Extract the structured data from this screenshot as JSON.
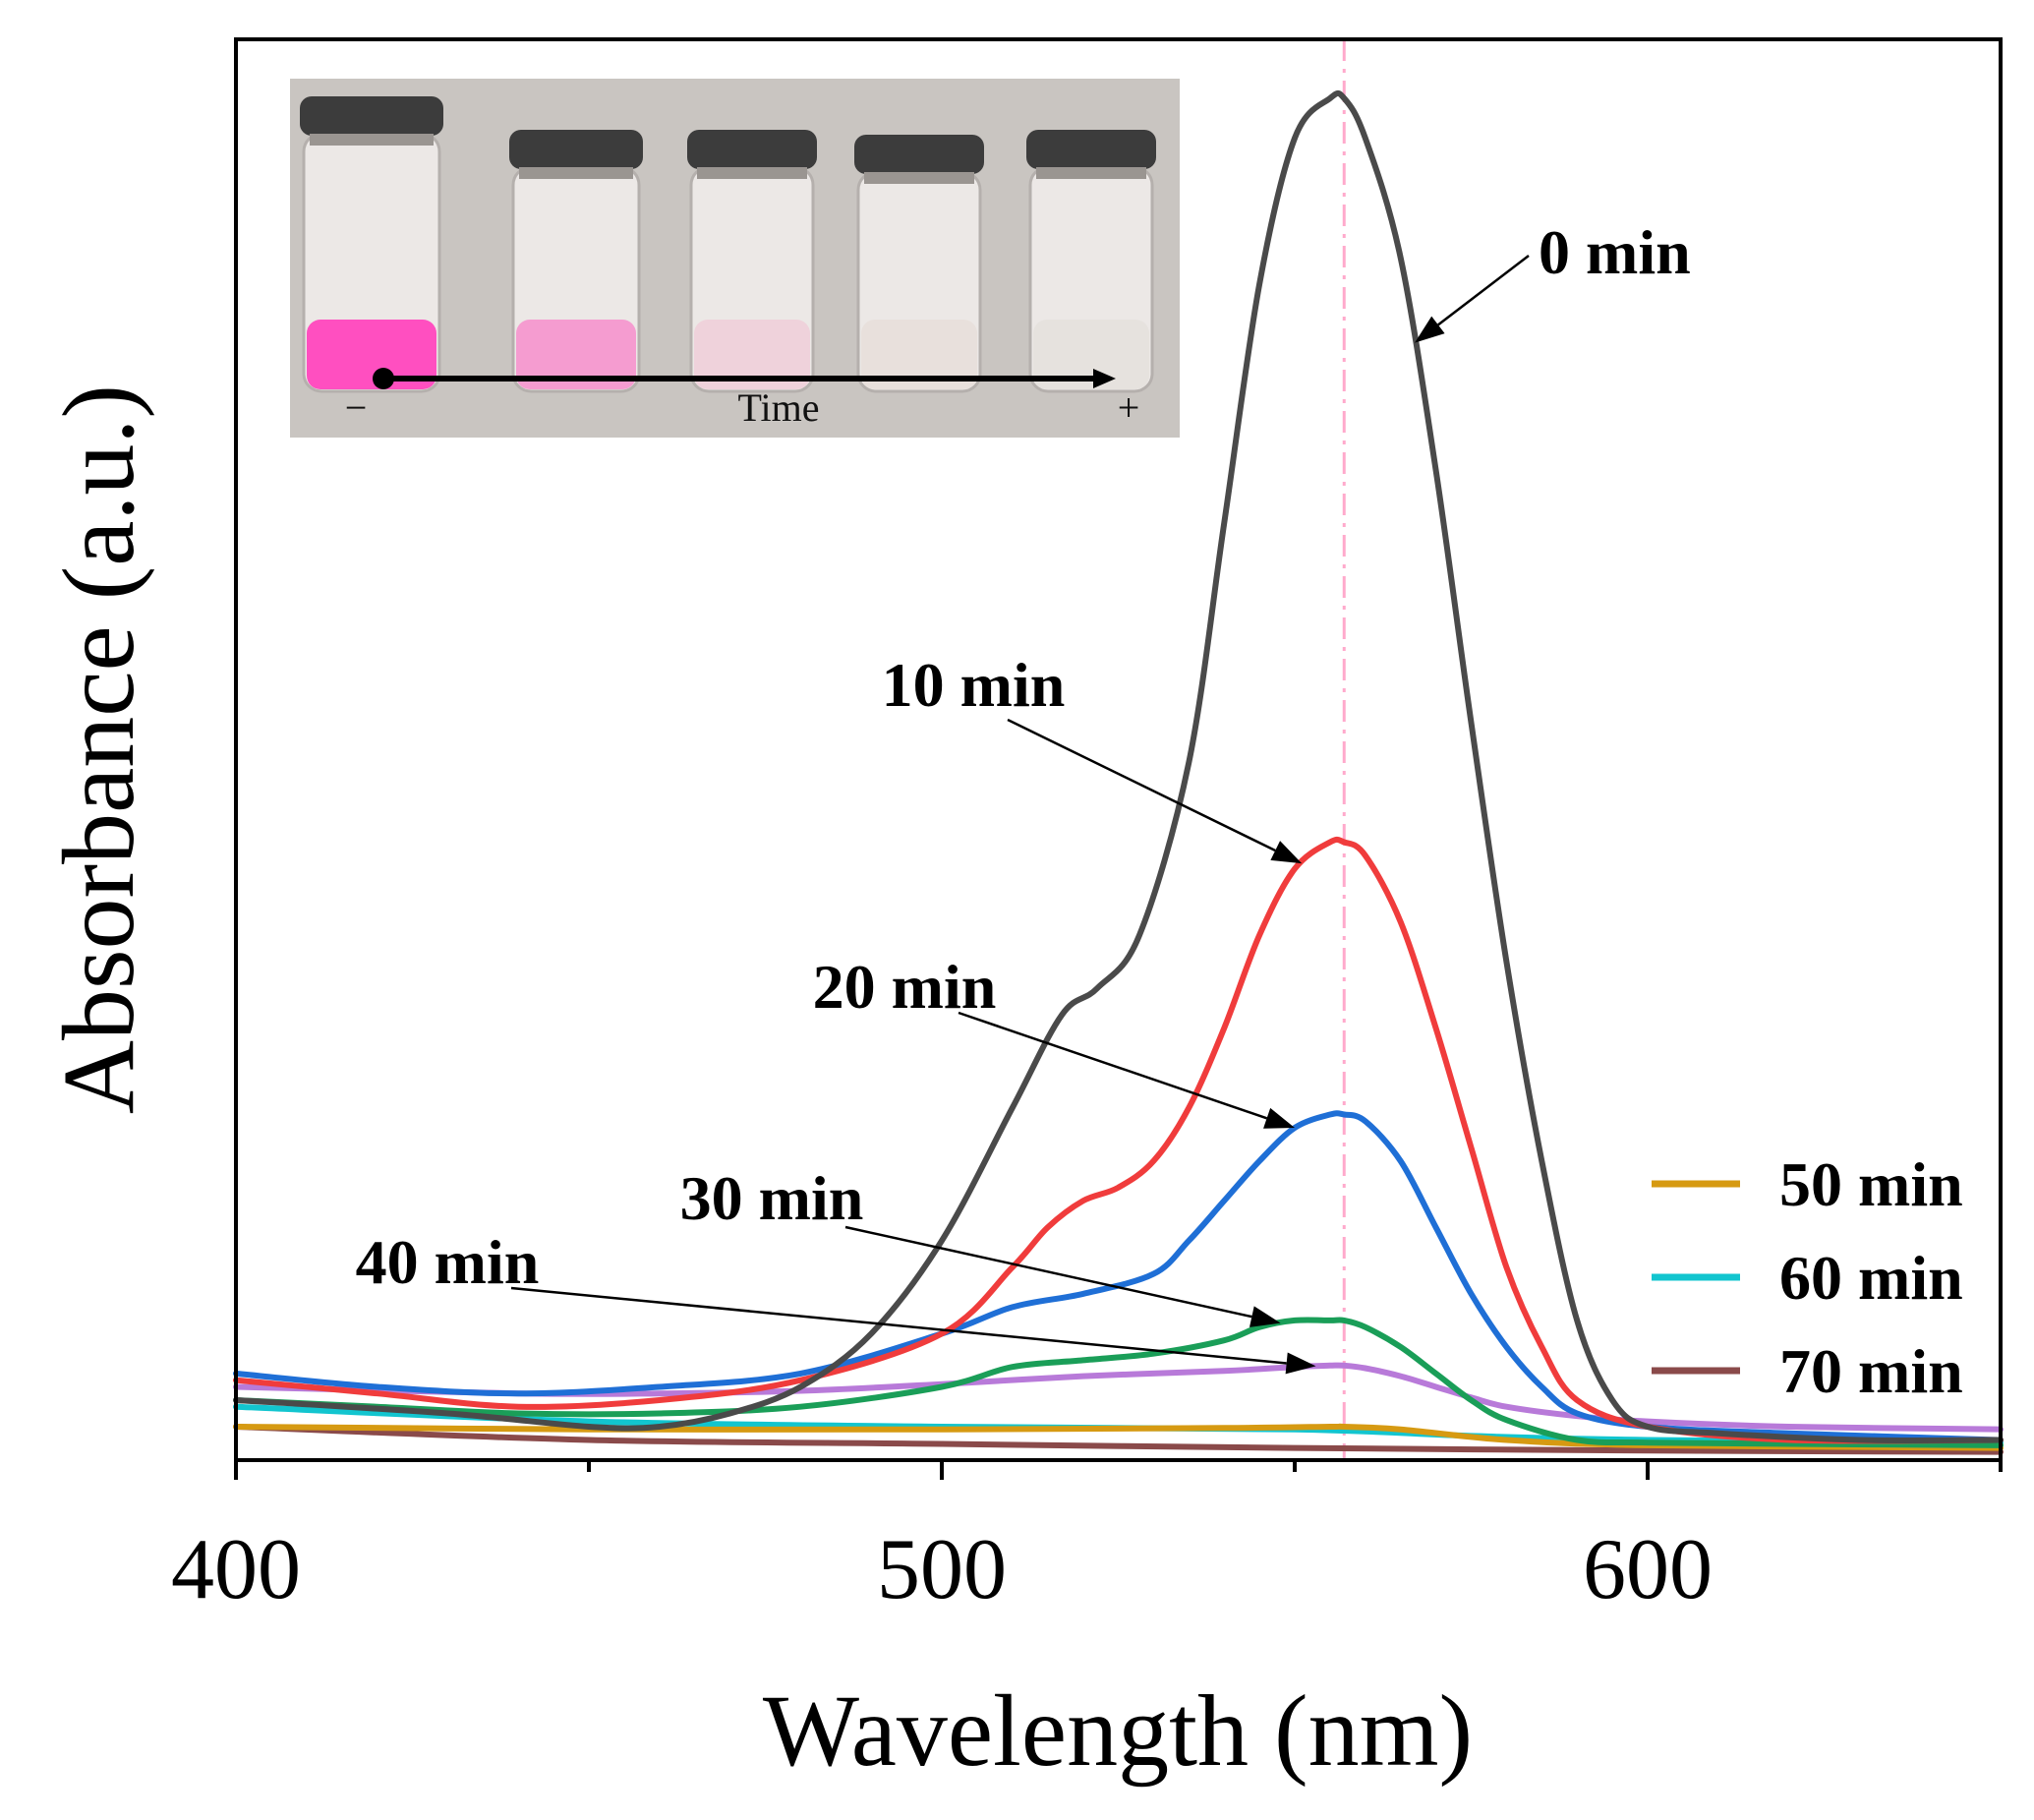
{
  "chart_data": {
    "type": "line",
    "xlabel": "Wavelength (nm)",
    "ylabel": "Absorbance (a.u.)",
    "xlim": [
      400,
      650
    ],
    "ylim": [
      0,
      1.04
    ],
    "xticks": [
      400,
      500,
      600
    ],
    "grid": false,
    "legend_position": "bottom-right",
    "reference_line": {
      "x": 557,
      "style": "dash-dot",
      "color": "#ffaacc"
    },
    "series": [
      {
        "name": "0 min",
        "color": "#4a4a4a",
        "x": [
          400,
          430,
          450,
          460,
          470,
          480,
          490,
          500,
          510,
          517,
          522,
          528,
          535,
          540,
          545,
          550,
          555,
          557,
          560,
          565,
          570,
          575,
          580,
          585,
          590,
          595,
          600,
          610,
          630,
          650
        ],
        "y": [
          0.04,
          0.03,
          0.02,
          0.02,
          0.03,
          0.05,
          0.09,
          0.16,
          0.26,
          0.33,
          0.35,
          0.39,
          0.52,
          0.7,
          0.88,
          0.99,
          1.02,
          1.02,
          0.99,
          0.9,
          0.74,
          0.55,
          0.37,
          0.22,
          0.1,
          0.04,
          0.02,
          0.015,
          0.01,
          0.01
        ]
      },
      {
        "name": "10 min",
        "color": "#f03c3c",
        "x": [
          400,
          420,
          440,
          460,
          480,
          500,
          510,
          515,
          520,
          525,
          530,
          535,
          540,
          545,
          550,
          555,
          557,
          560,
          565,
          570,
          575,
          580,
          585,
          590,
          600,
          620,
          650
        ],
        "y": [
          0.055,
          0.045,
          0.035,
          0.04,
          0.055,
          0.09,
          0.14,
          0.17,
          0.19,
          0.2,
          0.22,
          0.26,
          0.32,
          0.39,
          0.44,
          0.46,
          0.46,
          0.45,
          0.4,
          0.32,
          0.23,
          0.14,
          0.08,
          0.04,
          0.02,
          0.01,
          0.01
        ]
      },
      {
        "name": "20 min",
        "color": "#1f6fd6",
        "x": [
          400,
          420,
          440,
          460,
          480,
          500,
          510,
          520,
          530,
          535,
          540,
          545,
          550,
          555,
          557,
          560,
          565,
          570,
          575,
          580,
          585,
          590,
          600,
          620,
          650
        ],
        "y": [
          0.06,
          0.05,
          0.045,
          0.05,
          0.06,
          0.09,
          0.11,
          0.12,
          0.135,
          0.16,
          0.19,
          0.22,
          0.245,
          0.255,
          0.255,
          0.25,
          0.22,
          0.17,
          0.12,
          0.08,
          0.05,
          0.03,
          0.02,
          0.015,
          0.01
        ]
      },
      {
        "name": "30 min",
        "color": "#1a9e58",
        "x": [
          400,
          420,
          440,
          460,
          480,
          500,
          510,
          520,
          530,
          540,
          545,
          550,
          555,
          557,
          560,
          565,
          570,
          575,
          580,
          590,
          600,
          620,
          650
        ],
        "y": [
          0.04,
          0.035,
          0.03,
          0.03,
          0.035,
          0.05,
          0.065,
          0.07,
          0.075,
          0.085,
          0.095,
          0.1,
          0.1,
          0.1,
          0.095,
          0.08,
          0.06,
          0.04,
          0.025,
          0.01,
          0.008,
          0.007,
          0.006
        ]
      },
      {
        "name": "40 min",
        "color": "#b87ad9",
        "x": [
          400,
          440,
          460,
          480,
          500,
          520,
          540,
          550,
          555,
          557,
          560,
          565,
          570,
          575,
          580,
          590,
          600,
          620,
          650
        ],
        "y": [
          0.05,
          0.045,
          0.045,
          0.047,
          0.052,
          0.058,
          0.062,
          0.065,
          0.066,
          0.066,
          0.064,
          0.058,
          0.05,
          0.042,
          0.035,
          0.028,
          0.024,
          0.02,
          0.018
        ]
      },
      {
        "name": "50 min",
        "color": "#d69a12",
        "x": [
          400,
          450,
          500,
          540,
          555,
          557,
          565,
          580,
          600,
          650
        ],
        "y": [
          0.02,
          0.018,
          0.018,
          0.019,
          0.02,
          0.02,
          0.018,
          0.01,
          0.006,
          0.004
        ]
      },
      {
        "name": "60 min",
        "color": "#12c5cf",
        "x": [
          400,
          450,
          500,
          550,
          575,
          600,
          650
        ],
        "y": [
          0.035,
          0.024,
          0.02,
          0.018,
          0.013,
          0.01,
          0.008
        ]
      },
      {
        "name": "70 min",
        "color": "#8a4a4a",
        "x": [
          400,
          450,
          500,
          550,
          600,
          650
        ],
        "y": [
          0.02,
          0.01,
          0.007,
          0.004,
          0.002,
          0.001
        ]
      }
    ],
    "annotations": [
      {
        "text": "0 min",
        "series": "0 min"
      },
      {
        "text": "10 min",
        "series": "10 min"
      },
      {
        "text": "20 min",
        "series": "20 min"
      },
      {
        "text": "30 min",
        "series": "30 min"
      },
      {
        "text": "40 min",
        "series": "40 min"
      }
    ],
    "legend_entries": [
      "50 min",
      "60 min",
      "70 min"
    ]
  },
  "inset": {
    "axis_label": "Time",
    "minus_label": "−",
    "plus_label": "+",
    "vial_colors": [
      "#ff4fc0",
      "#f59cd0",
      "#efd2db",
      "#e8e0dc",
      "#e6e2de"
    ]
  }
}
